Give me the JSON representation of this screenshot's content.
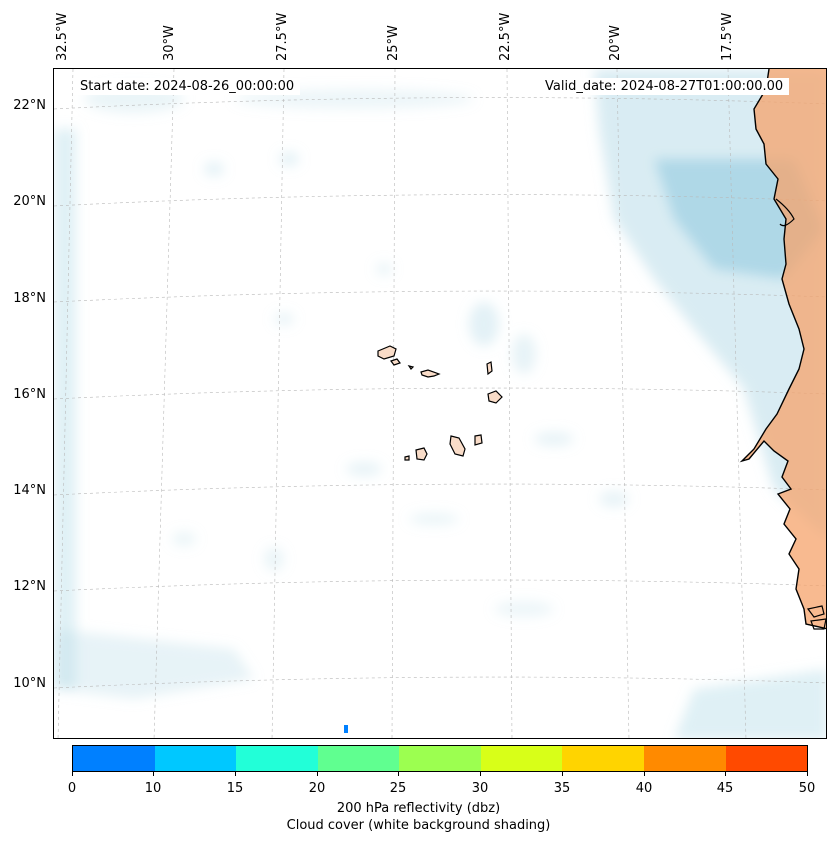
{
  "map": {
    "start_date": "Start date: 2024-08-26_00:00:00",
    "valid_date": "Valid_date: 2024-08-27T01:00:00.00",
    "lon_labels": [
      "32.5°W",
      "30°W",
      "27.5°W",
      "25°W",
      "22.5°W",
      "20°W",
      "17.5°W"
    ],
    "lat_labels": [
      "22°N",
      "20°N",
      "18°N",
      "16°N",
      "14°N",
      "12°N",
      "10°N"
    ]
  },
  "colorbar": {
    "ticks": [
      "0",
      "10",
      "15",
      "20",
      "25",
      "30",
      "35",
      "40",
      "45",
      "50"
    ],
    "colors": [
      "#0080ff",
      "#00c8ff",
      "#22ffd8",
      "#60ff90",
      "#9cff50",
      "#d8ff18",
      "#ffd400",
      "#ff8a00",
      "#ff4a00"
    ],
    "label_line1": "200 hPa reflectivity (dbz)",
    "label_line2": "Cloud cover (white background shading)"
  },
  "colors": {
    "cloud": "#b9dde9",
    "land": "#f6a36b",
    "coast": "#000000"
  }
}
